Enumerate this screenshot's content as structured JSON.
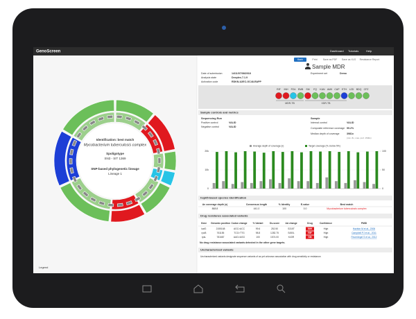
{
  "header": {
    "logo": "GenoScreen",
    "nav": [
      "Dashboard",
      "Tutorials",
      "Help"
    ]
  },
  "circle_panel": {
    "title": "Identification: best match",
    "species": "Mycobacterium tuberculosis complex",
    "spoligotype_title": "Spoligotype",
    "spoligotype": "SN3 - SIT 1369",
    "lineage_title": "SNP-based phylogenetic lineage",
    "lineage": "Lineage 1",
    "legend": "Legend"
  },
  "toolbar": [
    "Back",
    "Print",
    "Save as PDF",
    "Save as XLS",
    "Resistance Report"
  ],
  "sample": {
    "title": "Sample MDR",
    "info": [
      [
        "Date of submission",
        "14/11/07/08/2018"
      ],
      [
        "Analysis state",
        "Deeplex-7.1.9"
      ],
      [
        "Activation code",
        "RDKN-U2EC-GC48-RAPP"
      ]
    ],
    "experiment": [
      "Experiment set",
      "Demo"
    ]
  },
  "drugs": {
    "items": [
      {
        "name": "RIF",
        "color": "#e0191f"
      },
      {
        "name": "INH",
        "color": "#e0191f"
      },
      {
        "name": "PZA",
        "color": "#27c4e6"
      },
      {
        "name": "EMB",
        "color": "#6cbf5a"
      },
      {
        "name": "SM",
        "color": "#e0191f"
      },
      {
        "name": "FQ",
        "color": "#6cbf5a"
      },
      {
        "name": "KAN",
        "color": "#6cbf5a"
      },
      {
        "name": "AMK",
        "color": "#6cbf5a"
      },
      {
        "name": "CAP",
        "color": "#6cbf5a"
      },
      {
        "name": "ETH",
        "color": "#1d3fd6"
      },
      {
        "name": "LZD",
        "color": "#6cbf5a"
      },
      {
        "name": "BDQ",
        "color": "#6cbf5a"
      },
      {
        "name": "CFZ",
        "color": "#6cbf5a"
      }
    ],
    "groups": [
      "MDR-TB",
      "XDR-TB"
    ]
  },
  "controls": {
    "title": "Sample controls and metrics",
    "left_title": "Sequencing Run",
    "left": [
      [
        "Positive control",
        "VALID"
      ],
      [
        "Negative control",
        "VALID"
      ]
    ],
    "right_title": "Sample",
    "right": [
      [
        "Internal control",
        "VALID"
      ],
      [
        "Composite reference coverage",
        "99.2%"
      ],
      [
        "Median depth of coverage",
        "3981x"
      ]
    ],
    "note": "(min. 8x, max. prof. 1500x)"
  },
  "coverage_chart": {
    "type": "bar",
    "categories": [
      null,
      null,
      null,
      null,
      null,
      null,
      null,
      null,
      null,
      null,
      null,
      null,
      null,
      null,
      null,
      null,
      null,
      null
    ],
    "series": [
      {
        "name": "Average depth of coverage (x)",
        "color": "#9a9a9a",
        "values": [
          3000,
          4000,
          2500,
          3500,
          3000,
          4000,
          5000,
          3000,
          5500,
          4000,
          4000,
          3000,
          6000,
          4000,
          3000,
          4500,
          3500,
          2500
        ]
      },
      {
        "name": "Target coverage (%, below 5%)",
        "color": "#2b8a1f",
        "axis": "y2",
        "values": [
          98,
          100,
          97,
          100,
          99,
          96,
          100,
          98,
          100,
          97,
          100,
          99,
          100,
          98,
          100,
          97,
          99,
          100
        ]
      }
    ],
    "ylim": [
      0,
      20000
    ],
    "yticks": [
      0,
      {
        "value": 10000,
        "label": "10k"
      },
      {
        "value": 20000,
        "label": "20k"
      }
    ],
    "y2lim": [
      0,
      100
    ],
    "y2ticks": [
      0,
      50,
      100
    ]
  },
  "hsp65": {
    "title": "hsp65-based species identification",
    "columns": [
      "Av coverage depth (x)",
      "Consensus length",
      "% Identity",
      "E-value",
      "Best match"
    ],
    "row": [
      "868.8",
      "441.0",
      "100",
      "0.0",
      "Mycobacterium tuberculosis complex"
    ]
  },
  "variants": {
    "title": "Drug resistance associated variants",
    "columns": [
      "Gene",
      "Genomic position",
      "Codon change",
      "% Variant",
      "Ds-score",
      "AA change",
      "Drug",
      "Confidence",
      "PMID"
    ],
    "rows": [
      [
        "katG",
        "2155168",
        "AGC>ACC",
        "99.6",
        "252.50",
        "S315T",
        "INH",
        "High",
        "Hazbón M et al., 2006"
      ],
      [
        "rpoB",
        "761155",
        "TCG>TTG",
        "98.8",
        "1282.75",
        "S450L",
        "RIF",
        "High",
        "Campbell PJ et al., 2011"
      ],
      [
        "rpsL",
        "781687",
        "AAG>AGG",
        "100",
        "1574.00",
        "K43R",
        "SM",
        "High",
        "Feuerriegel S et al., 2012"
      ]
    ],
    "footnote": "No drug resistance associated variants detected in the other gene targets."
  },
  "uncharacterized": {
    "title": "Uncharacterized variants",
    "text": "Uncharacterized variants designate sequence variants of as yet unknown association with drug sensitivity or resistance."
  }
}
